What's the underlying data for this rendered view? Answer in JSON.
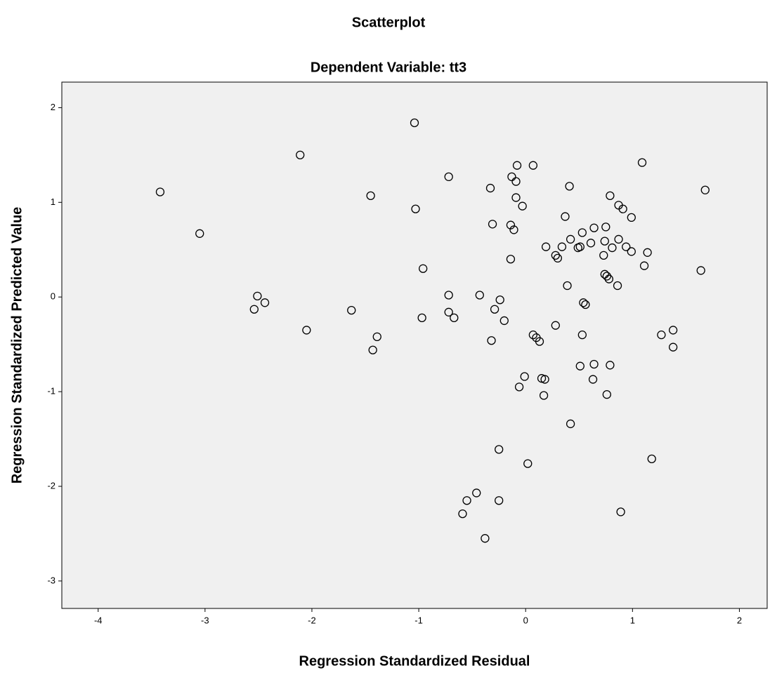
{
  "chart_data": {
    "type": "scatter",
    "title": "Scatterplot",
    "subtitle": "Dependent Variable: tt3",
    "x_label": "Regression Standardized Residual",
    "y_label": "Regression Standardized Predicted Value",
    "xlim": [
      -4.34,
      2.26
    ],
    "ylim": [
      -3.29,
      2.27
    ],
    "xticks": [
      -4,
      -3,
      -2,
      -1,
      0,
      1,
      2
    ],
    "yticks": [
      -3,
      -2,
      -1,
      0,
      1,
      2
    ],
    "color": "#000000",
    "background": "#f0f0f0",
    "grid": false,
    "x": [
      -3.42,
      -3.05,
      -2.11,
      -1.04,
      -1.45,
      -1.03,
      -0.72,
      -0.96,
      -2.51,
      -2.54,
      -2.44,
      -2.05,
      -1.63,
      -1.39,
      -1.43,
      -0.97,
      -0.72,
      -0.72,
      -0.67,
      -0.43,
      -0.33,
      -0.31,
      -0.24,
      -0.29,
      -0.2,
      -0.32,
      -0.14,
      -0.14,
      -0.11,
      -0.13,
      -0.09,
      -0.08,
      -0.09,
      -0.03,
      0.07,
      0.41,
      0.37,
      0.19,
      0.28,
      0.3,
      0.34,
      0.42,
      0.49,
      0.51,
      0.53,
      0.61,
      0.64,
      0.75,
      0.74,
      0.81,
      0.73,
      0.87,
      0.79,
      0.87,
      0.91,
      0.99,
      1.09,
      0.94,
      0.99,
      1.14,
      1.11,
      0.39,
      0.74,
      0.76,
      0.78,
      0.86,
      0.54,
      0.56,
      0.28,
      0.07,
      0.1,
      0.13,
      0.53,
      1.27,
      1.38,
      1.38,
      1.64,
      1.68,
      -0.01,
      -0.06,
      0.15,
      0.18,
      0.17,
      0.51,
      0.63,
      0.64,
      0.79,
      0.76,
      0.42,
      -0.25,
      0.02,
      1.18,
      -0.46,
      -0.55,
      -0.59,
      -0.25,
      -0.38,
      0.89
    ],
    "values": [
      1.11,
      0.67,
      1.5,
      1.84,
      1.07,
      0.93,
      1.27,
      0.3,
      0.01,
      -0.13,
      -0.06,
      -0.35,
      -0.14,
      -0.42,
      -0.56,
      -0.22,
      0.02,
      -0.16,
      -0.22,
      0.02,
      1.15,
      0.77,
      -0.03,
      -0.13,
      -0.25,
      -0.46,
      0.4,
      0.76,
      0.71,
      1.27,
      1.22,
      1.39,
      1.05,
      0.96,
      1.39,
      1.17,
      0.85,
      0.53,
      0.44,
      0.41,
      0.53,
      0.61,
      0.52,
      0.53,
      0.68,
      0.57,
      0.73,
      0.74,
      0.59,
      0.52,
      0.44,
      0.61,
      1.07,
      0.97,
      0.93,
      0.84,
      1.42,
      0.53,
      0.48,
      0.47,
      0.33,
      0.12,
      0.24,
      0.22,
      0.19,
      0.12,
      -0.06,
      -0.08,
      -0.3,
      -0.4,
      -0.43,
      -0.47,
      -0.4,
      -0.4,
      -0.35,
      -0.53,
      0.28,
      1.13,
      -0.84,
      -0.95,
      -0.86,
      -0.87,
      -1.04,
      -0.73,
      -0.87,
      -0.71,
      -0.72,
      -1.03,
      -1.34,
      -1.61,
      -1.76,
      -1.71,
      -2.07,
      -2.15,
      -2.29,
      -2.15,
      -2.55,
      -2.27
    ]
  }
}
